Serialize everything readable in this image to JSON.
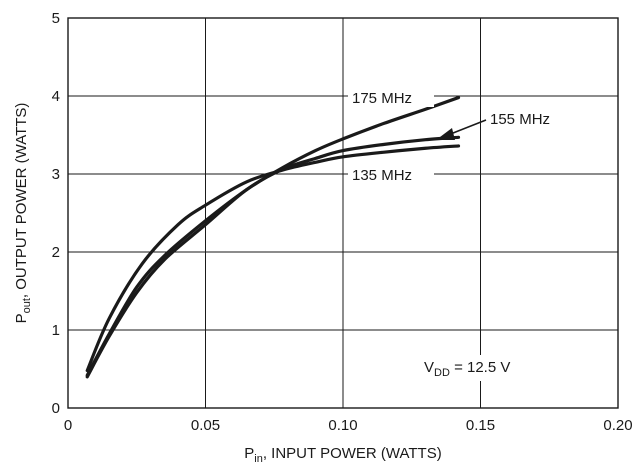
{
  "chart_data": {
    "type": "line",
    "xlabel_main": "P",
    "xlabel_sub": "in",
    "xlabel_rest": ", INPUT POWER (WATTS)",
    "ylabel_main": "P",
    "ylabel_sub": "out",
    "ylabel_rest": ", OUTPUT POWER (WATTS)",
    "xlim": [
      0,
      0.2
    ],
    "ylim": [
      0,
      5
    ],
    "xticks": [
      "0",
      "0.05",
      "0.10",
      "0.15",
      "0.20"
    ],
    "yticks": [
      "0",
      "1",
      "2",
      "3",
      "4",
      "5"
    ],
    "grid": true,
    "series": [
      {
        "name": "175 MHz",
        "x": [
          0.007,
          0.015,
          0.025,
          0.035,
          0.05,
          0.065,
          0.078,
          0.09,
          0.1,
          0.115,
          0.13,
          0.142
        ],
        "y": [
          0.42,
          0.95,
          1.55,
          1.95,
          2.4,
          2.8,
          3.08,
          3.3,
          3.45,
          3.65,
          3.83,
          3.98
        ]
      },
      {
        "name": "155 MHz",
        "x": [
          0.007,
          0.015,
          0.025,
          0.035,
          0.05,
          0.065,
          0.078,
          0.09,
          0.1,
          0.115,
          0.13,
          0.142
        ],
        "y": [
          0.4,
          0.92,
          1.48,
          1.9,
          2.35,
          2.8,
          3.06,
          3.2,
          3.3,
          3.38,
          3.44,
          3.47
        ]
      },
      {
        "name": "135 MHz",
        "x": [
          0.007,
          0.015,
          0.027,
          0.04,
          0.05,
          0.065,
          0.078,
          0.09,
          0.1,
          0.115,
          0.13,
          0.142
        ],
        "y": [
          0.48,
          1.15,
          1.85,
          2.35,
          2.6,
          2.9,
          3.05,
          3.15,
          3.22,
          3.28,
          3.33,
          3.36
        ]
      }
    ],
    "annotation_main": "V",
    "annotation_sub": "DD",
    "annotation_rest": " = 12.5 V"
  }
}
